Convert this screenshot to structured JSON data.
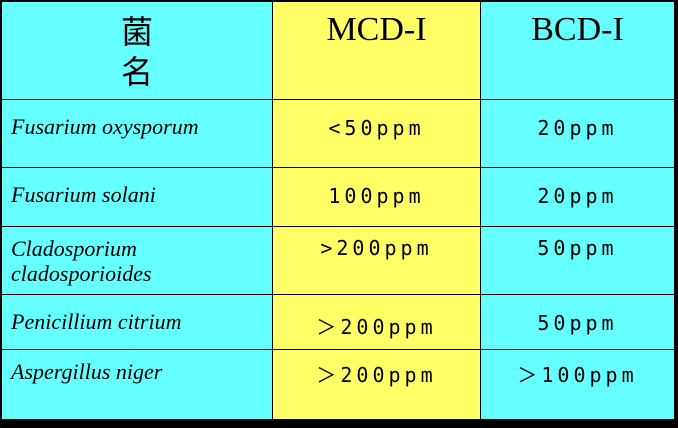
{
  "table": {
    "headers": [
      "菌名",
      "MCD-I",
      "BCD-I"
    ],
    "rows": [
      {
        "organism": "Fusarium oxysporum",
        "mcd": "<50ppm",
        "bcd": "20ppm"
      },
      {
        "organism": "Fusarium solani",
        "mcd": "100ppm",
        "bcd": "20ppm"
      },
      {
        "organism": "Cladosporium cladosporioides",
        "mcd": ">200ppm",
        "bcd": "50ppm"
      },
      {
        "organism": "Penicillium citrium",
        "mcd": "＞200ppm",
        "bcd": "50ppm"
      },
      {
        "organism": "Aspergillus niger",
        "mcd": "＞200ppm",
        "bcd": "＞100ppm"
      }
    ]
  },
  "colors": {
    "cyan": "#66FFFF",
    "yellow": "#FFFF66",
    "border": "#000000"
  }
}
